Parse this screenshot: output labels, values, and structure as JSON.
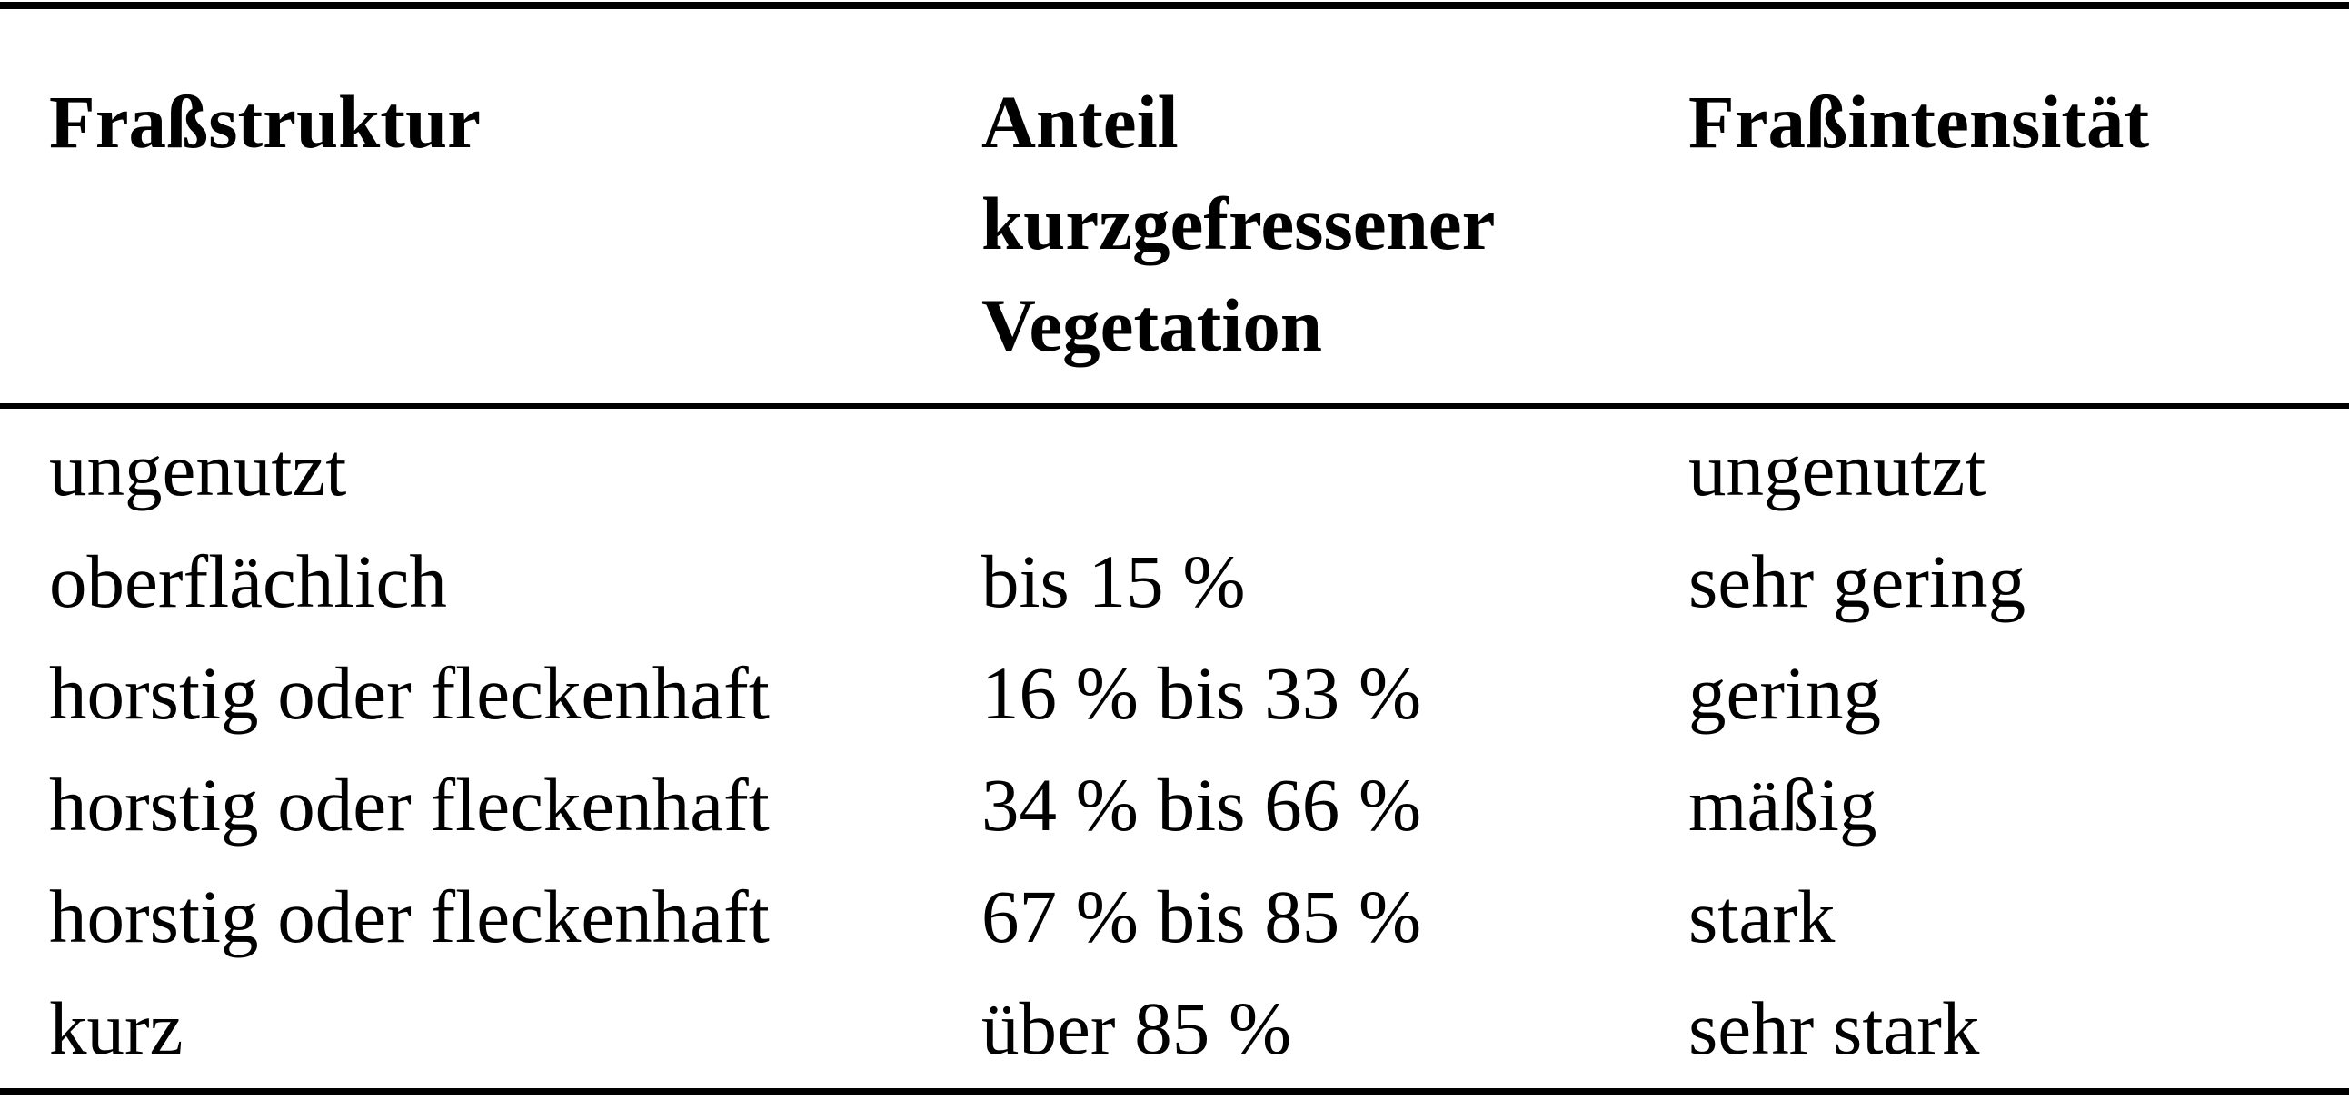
{
  "table": {
    "headers": [
      [
        "Fraßstruktur"
      ],
      [
        "Anteil",
        "kurzgefressener",
        "Vegetation"
      ],
      [
        "Fraßintensität"
      ]
    ],
    "rows": [
      [
        "ungenutzt",
        "",
        "ungenutzt"
      ],
      [
        "oberflächlich",
        "bis 15 %",
        "sehr gering"
      ],
      [
        "horstig oder fleckenhaft",
        "16 % bis 33 %",
        "gering"
      ],
      [
        "horstig oder fleckenhaft",
        "34 % bis 66 %",
        "mäßig"
      ],
      [
        "horstig oder fleckenhaft",
        "67 % bis 85 %",
        "stark"
      ],
      [
        "kurz",
        "über 85 %",
        "sehr stark"
      ]
    ]
  }
}
